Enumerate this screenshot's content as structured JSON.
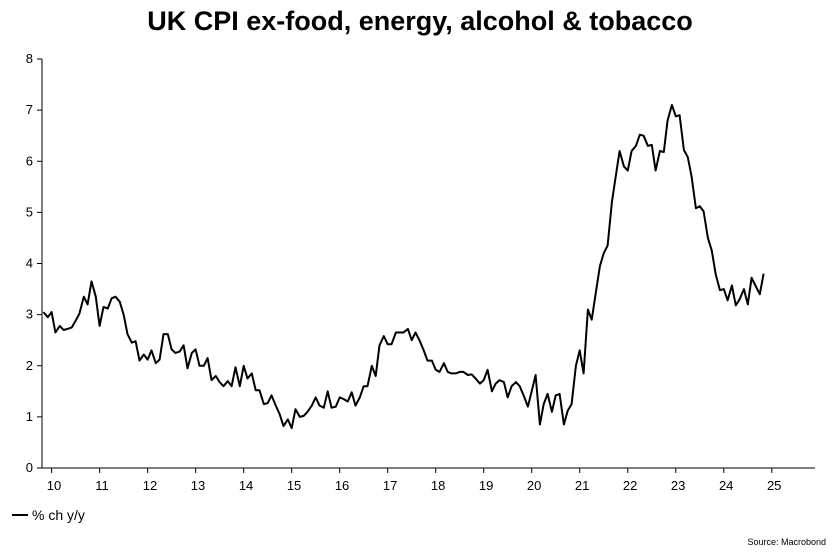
{
  "chart_data": {
    "type": "line",
    "title": "UK CPI ex-food, energy, alcohol & tobacco",
    "xlabel": "",
    "ylabel": "",
    "ylim": [
      0,
      8
    ],
    "yticks": [
      0,
      1,
      2,
      3,
      4,
      5,
      6,
      7,
      8
    ],
    "x_start": 2009.8,
    "x_end": 2025.9,
    "xtick_labels": [
      "10",
      "11",
      "12",
      "13",
      "14",
      "15",
      "16",
      "17",
      "18",
      "19",
      "20",
      "21",
      "22",
      "23",
      "24",
      "25"
    ],
    "grid": false,
    "legend_position": "bottom-left",
    "series": [
      {
        "name": "% ch y/y",
        "color": "#000000",
        "points": [
          [
            2009.83,
            3.05
          ],
          [
            2009.92,
            2.95
          ],
          [
            2010.0,
            3.05
          ],
          [
            2010.08,
            2.65
          ],
          [
            2010.17,
            2.78
          ],
          [
            2010.25,
            2.7
          ],
          [
            2010.33,
            2.72
          ],
          [
            2010.42,
            2.75
          ],
          [
            2010.5,
            2.88
          ],
          [
            2010.58,
            3.02
          ],
          [
            2010.67,
            3.35
          ],
          [
            2010.75,
            3.2
          ],
          [
            2010.83,
            3.65
          ],
          [
            2010.92,
            3.35
          ],
          [
            2011.0,
            2.78
          ],
          [
            2011.08,
            3.15
          ],
          [
            2011.17,
            3.12
          ],
          [
            2011.25,
            3.32
          ],
          [
            2011.33,
            3.35
          ],
          [
            2011.42,
            3.25
          ],
          [
            2011.5,
            3.0
          ],
          [
            2011.58,
            2.62
          ],
          [
            2011.67,
            2.45
          ],
          [
            2011.75,
            2.48
          ],
          [
            2011.83,
            2.1
          ],
          [
            2011.92,
            2.22
          ],
          [
            2012.0,
            2.12
          ],
          [
            2012.08,
            2.3
          ],
          [
            2012.17,
            2.05
          ],
          [
            2012.25,
            2.12
          ],
          [
            2012.33,
            2.62
          ],
          [
            2012.42,
            2.62
          ],
          [
            2012.5,
            2.32
          ],
          [
            2012.58,
            2.25
          ],
          [
            2012.67,
            2.28
          ],
          [
            2012.75,
            2.4
          ],
          [
            2012.83,
            1.95
          ],
          [
            2012.92,
            2.25
          ],
          [
            2013.0,
            2.32
          ],
          [
            2013.08,
            2.0
          ],
          [
            2013.17,
            2.0
          ],
          [
            2013.25,
            2.15
          ],
          [
            2013.33,
            1.72
          ],
          [
            2013.42,
            1.8
          ],
          [
            2013.5,
            1.68
          ],
          [
            2013.58,
            1.6
          ],
          [
            2013.67,
            1.7
          ],
          [
            2013.75,
            1.6
          ],
          [
            2013.83,
            1.97
          ],
          [
            2013.92,
            1.6
          ],
          [
            2014.0,
            2.0
          ],
          [
            2014.08,
            1.75
          ],
          [
            2014.17,
            1.85
          ],
          [
            2014.25,
            1.52
          ],
          [
            2014.33,
            1.52
          ],
          [
            2014.42,
            1.25
          ],
          [
            2014.5,
            1.27
          ],
          [
            2014.58,
            1.42
          ],
          [
            2014.67,
            1.22
          ],
          [
            2014.75,
            1.05
          ],
          [
            2014.83,
            0.82
          ],
          [
            2014.92,
            0.95
          ],
          [
            2015.0,
            0.78
          ],
          [
            2015.08,
            1.15
          ],
          [
            2015.17,
            1.0
          ],
          [
            2015.25,
            1.02
          ],
          [
            2015.33,
            1.1
          ],
          [
            2015.42,
            1.22
          ],
          [
            2015.5,
            1.38
          ],
          [
            2015.58,
            1.22
          ],
          [
            2015.67,
            1.18
          ],
          [
            2015.75,
            1.5
          ],
          [
            2015.83,
            1.18
          ],
          [
            2015.92,
            1.2
          ],
          [
            2016.0,
            1.38
          ],
          [
            2016.08,
            1.35
          ],
          [
            2016.17,
            1.3
          ],
          [
            2016.25,
            1.48
          ],
          [
            2016.33,
            1.22
          ],
          [
            2016.42,
            1.38
          ],
          [
            2016.5,
            1.6
          ],
          [
            2016.58,
            1.6
          ],
          [
            2016.67,
            2.0
          ],
          [
            2016.75,
            1.8
          ],
          [
            2016.83,
            2.4
          ],
          [
            2016.92,
            2.58
          ],
          [
            2017.0,
            2.42
          ],
          [
            2017.08,
            2.42
          ],
          [
            2017.17,
            2.65
          ],
          [
            2017.25,
            2.65
          ],
          [
            2017.33,
            2.65
          ],
          [
            2017.42,
            2.72
          ],
          [
            2017.5,
            2.5
          ],
          [
            2017.58,
            2.65
          ],
          [
            2017.67,
            2.48
          ],
          [
            2017.75,
            2.3
          ],
          [
            2017.83,
            2.1
          ],
          [
            2017.92,
            2.1
          ],
          [
            2018.0,
            1.92
          ],
          [
            2018.08,
            1.88
          ],
          [
            2018.17,
            2.05
          ],
          [
            2018.25,
            1.88
          ],
          [
            2018.33,
            1.85
          ],
          [
            2018.42,
            1.85
          ],
          [
            2018.5,
            1.88
          ],
          [
            2018.58,
            1.88
          ],
          [
            2018.67,
            1.82
          ],
          [
            2018.75,
            1.83
          ],
          [
            2018.83,
            1.75
          ],
          [
            2018.92,
            1.65
          ],
          [
            2019.0,
            1.72
          ],
          [
            2019.08,
            1.92
          ],
          [
            2019.17,
            1.5
          ],
          [
            2019.25,
            1.65
          ],
          [
            2019.33,
            1.72
          ],
          [
            2019.42,
            1.68
          ],
          [
            2019.5,
            1.38
          ],
          [
            2019.58,
            1.6
          ],
          [
            2019.67,
            1.68
          ],
          [
            2019.75,
            1.6
          ],
          [
            2019.83,
            1.42
          ],
          [
            2019.92,
            1.2
          ],
          [
            2020.0,
            1.5
          ],
          [
            2020.08,
            1.82
          ],
          [
            2020.17,
            0.85
          ],
          [
            2020.25,
            1.25
          ],
          [
            2020.33,
            1.45
          ],
          [
            2020.42,
            1.1
          ],
          [
            2020.5,
            1.42
          ],
          [
            2020.58,
            1.45
          ],
          [
            2020.67,
            0.85
          ],
          [
            2020.75,
            1.12
          ],
          [
            2020.83,
            1.25
          ],
          [
            2020.92,
            2.0
          ],
          [
            2021.0,
            2.3
          ],
          [
            2021.08,
            1.85
          ],
          [
            2021.17,
            3.1
          ],
          [
            2021.25,
            2.9
          ],
          [
            2021.33,
            3.4
          ],
          [
            2021.42,
            3.95
          ],
          [
            2021.5,
            4.2
          ],
          [
            2021.58,
            4.35
          ],
          [
            2021.67,
            5.2
          ],
          [
            2021.75,
            5.7
          ],
          [
            2021.83,
            6.2
          ],
          [
            2021.92,
            5.9
          ],
          [
            2022.0,
            5.82
          ],
          [
            2022.08,
            6.2
          ],
          [
            2022.17,
            6.3
          ],
          [
            2022.25,
            6.52
          ],
          [
            2022.33,
            6.5
          ],
          [
            2022.42,
            6.3
          ],
          [
            2022.5,
            6.32
          ],
          [
            2022.58,
            5.82
          ],
          [
            2022.67,
            6.2
          ],
          [
            2022.75,
            6.18
          ],
          [
            2022.83,
            6.8
          ],
          [
            2022.92,
            7.1
          ],
          [
            2023.0,
            6.88
          ],
          [
            2023.08,
            6.9
          ],
          [
            2023.17,
            6.22
          ],
          [
            2023.25,
            6.08
          ],
          [
            2023.33,
            5.7
          ],
          [
            2023.42,
            5.08
          ],
          [
            2023.5,
            5.12
          ],
          [
            2023.58,
            5.02
          ],
          [
            2023.67,
            4.5
          ],
          [
            2023.75,
            4.25
          ],
          [
            2023.83,
            3.8
          ],
          [
            2023.92,
            3.48
          ],
          [
            2024.0,
            3.5
          ],
          [
            2024.08,
            3.28
          ],
          [
            2024.17,
            3.57
          ],
          [
            2024.25,
            3.18
          ],
          [
            2024.33,
            3.3
          ],
          [
            2024.42,
            3.5
          ],
          [
            2024.5,
            3.2
          ],
          [
            2024.58,
            3.72
          ],
          [
            2024.67,
            3.55
          ],
          [
            2024.75,
            3.4
          ],
          [
            2024.83,
            3.8
          ]
        ]
      }
    ],
    "legend_label": "% ch y/y",
    "source": "Source: Macrobond"
  }
}
